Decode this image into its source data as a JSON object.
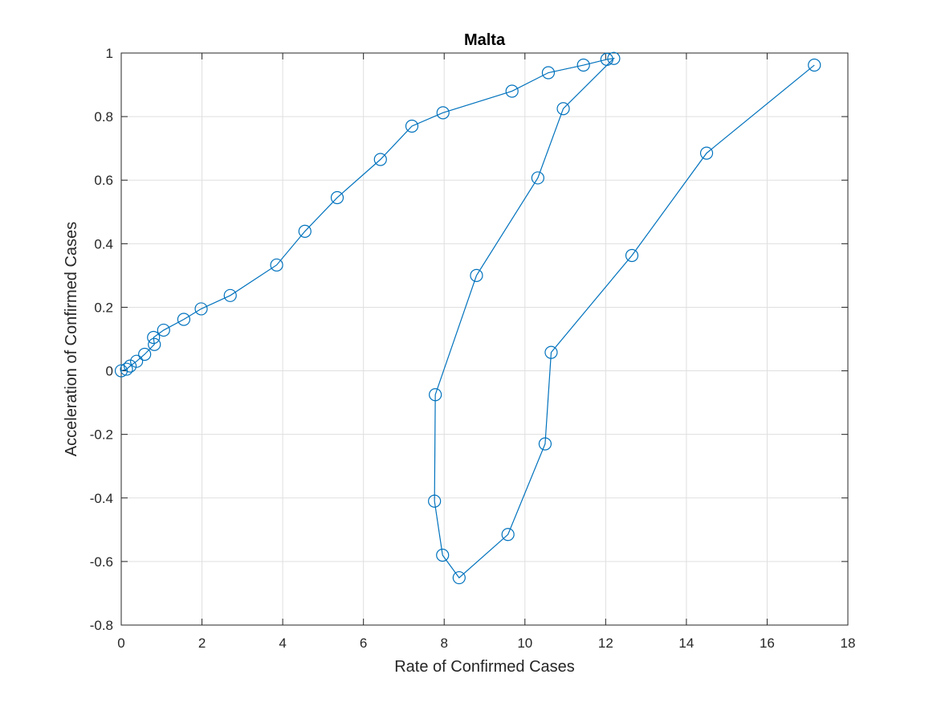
{
  "chart_data": {
    "type": "scatter",
    "title": "Malta",
    "xlabel": "Rate of Confirmed Cases",
    "ylabel": "Acceleration of Confirmed Cases",
    "xlim": [
      0,
      18
    ],
    "ylim": [
      -0.8,
      1
    ],
    "xticks": [
      0,
      2,
      4,
      6,
      8,
      10,
      12,
      14,
      16,
      18
    ],
    "yticks": [
      -0.8,
      -0.6,
      -0.4,
      -0.2,
      0,
      0.2,
      0.4,
      0.6,
      0.8,
      1
    ],
    "xtick_labels": [
      "0",
      "2",
      "4",
      "6",
      "8",
      "10",
      "12",
      "14",
      "16",
      "18"
    ],
    "ytick_labels": [
      "-0.8",
      "-0.6",
      "-0.4",
      "-0.2",
      "0",
      "0.2",
      "0.4",
      "0.6",
      "0.8",
      "1"
    ],
    "grid": true,
    "line_style": "line-with-circle-markers",
    "series_color": "#0072BD",
    "series": [
      {
        "x": [
          0.0,
          0.13,
          0.22,
          0.38,
          0.58,
          0.82,
          0.8,
          1.05,
          1.55,
          1.98,
          2.7,
          3.85,
          4.55,
          5.35,
          6.42,
          7.2,
          7.97,
          9.68,
          10.58,
          11.45,
          12.03,
          12.2,
          10.95,
          10.32,
          8.8,
          7.78,
          7.76,
          7.96,
          8.37,
          9.58,
          10.5,
          10.65,
          12.65,
          14.5,
          17.17
        ],
        "y": [
          0.0,
          0.005,
          0.015,
          0.03,
          0.052,
          0.083,
          0.105,
          0.128,
          0.162,
          0.195,
          0.237,
          0.333,
          0.439,
          0.545,
          0.665,
          0.77,
          0.812,
          0.88,
          0.938,
          0.962,
          0.98,
          0.983,
          0.825,
          0.607,
          0.3,
          -0.075,
          -0.41,
          -0.58,
          -0.651,
          -0.515,
          -0.23,
          0.058,
          0.363,
          0.685,
          0.962
        ]
      }
    ]
  }
}
